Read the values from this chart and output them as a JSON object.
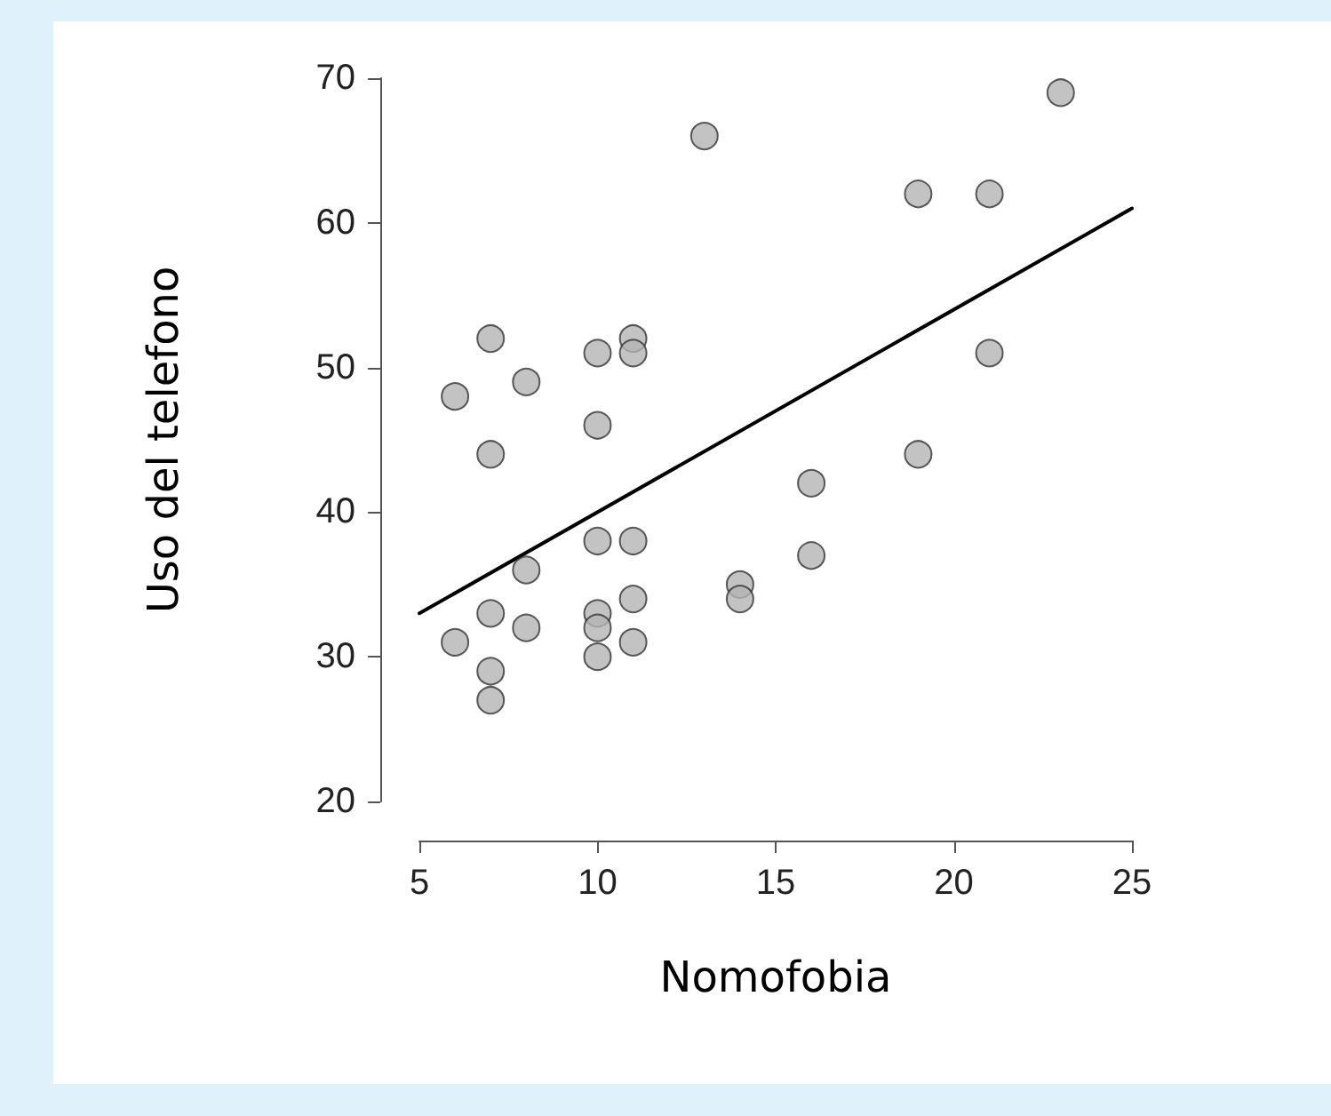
{
  "chart_data": {
    "type": "scatter",
    "xlabel": "Nomofobia",
    "ylabel": "Uso del telefono",
    "xlim": [
      5,
      25
    ],
    "xticks": [
      5,
      10,
      15,
      20,
      25
    ],
    "ylim": [
      20,
      70
    ],
    "yticks": [
      20,
      30,
      40,
      50,
      60,
      70
    ],
    "marker": "circle",
    "series": [
      {
        "color": "#b4b4b4",
        "x": [
          6,
          7,
          8,
          7,
          10,
          11,
          11,
          10,
          13,
          19,
          21,
          23,
          21,
          19,
          16,
          16,
          14,
          14,
          10,
          11,
          8,
          7,
          6,
          8,
          7,
          7,
          10,
          10,
          10,
          11,
          11
        ],
        "values": [
          48,
          52,
          49,
          44,
          51,
          52,
          51,
          46,
          66,
          62,
          62,
          69,
          51,
          44,
          42,
          37,
          35,
          34,
          38,
          38,
          36,
          33,
          31,
          32,
          29,
          27,
          33,
          32,
          30,
          34,
          31
        ]
      },
      {
        "type": "line",
        "marker": "none",
        "color": "#000000",
        "x": [
          5,
          25
        ],
        "values": [
          33,
          61
        ]
      }
    ]
  }
}
